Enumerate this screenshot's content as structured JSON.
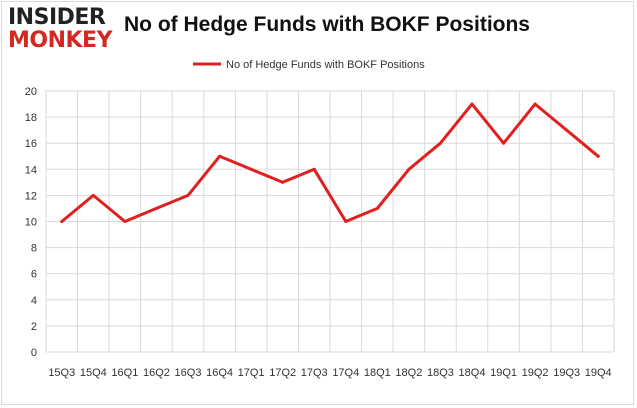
{
  "brand": {
    "line1": "INSIDER",
    "line2": "MONKEY"
  },
  "colors": {
    "series": "#e02020",
    "grid": "#d9d9d9",
    "brand_red": "#d22a22"
  },
  "chart_data": {
    "type": "line",
    "title": "No of Hedge Funds with BOKF Positions",
    "categories": [
      "15Q3",
      "15Q4",
      "16Q1",
      "16Q2",
      "16Q3",
      "16Q4",
      "17Q1",
      "17Q2",
      "17Q3",
      "17Q4",
      "18Q1",
      "18Q2",
      "18Q3",
      "18Q4",
      "19Q1",
      "19Q2",
      "19Q3",
      "19Q4"
    ],
    "series": [
      {
        "name": "No of Hedge Funds with BOKF Positions",
        "values": [
          10,
          12,
          10,
          11,
          12,
          15,
          14,
          13,
          14,
          10,
          11,
          14,
          16,
          19,
          16,
          19,
          17,
          15
        ]
      }
    ],
    "yticks": [
      0,
      2,
      4,
      6,
      8,
      10,
      12,
      14,
      16,
      18,
      20
    ],
    "ylim": [
      0,
      20
    ],
    "grid": true,
    "legend_position": "top-center"
  }
}
